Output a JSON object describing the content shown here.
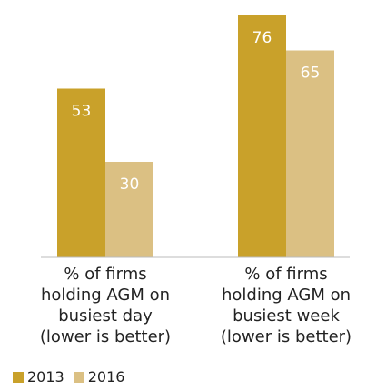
{
  "chart_data": {
    "type": "bar",
    "categories": [
      "% of firms\nholding AGM on\nbusiest day\n(lower is better)",
      "% of firms\nholding AGM on\nbusiest week\n(lower is better)"
    ],
    "series": [
      {
        "name": "2013",
        "color": "#c9a12a",
        "values": [
          53,
          76
        ]
      },
      {
        "name": "2016",
        "color": "#dbc083",
        "values": [
          30,
          65
        ]
      }
    ],
    "legend": "bottom-left"
  }
}
